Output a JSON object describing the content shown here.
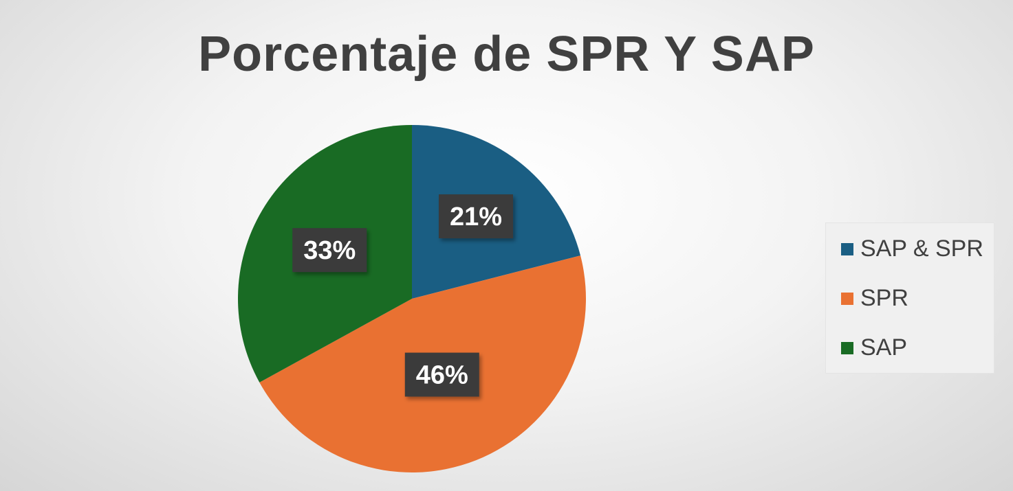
{
  "chart_data": {
    "type": "pie",
    "title": "Porcentaje de SPR Y SAP",
    "categories": [
      "SAP & SPR",
      "SPR",
      "SAP"
    ],
    "values": [
      21,
      46,
      33
    ],
    "labels": [
      "21%",
      "46%",
      "33%"
    ],
    "colors": [
      "#1a5e83",
      "#e97132",
      "#196b24"
    ],
    "legend_position": "right",
    "start_angle": "12 o'clock, clockwise"
  }
}
